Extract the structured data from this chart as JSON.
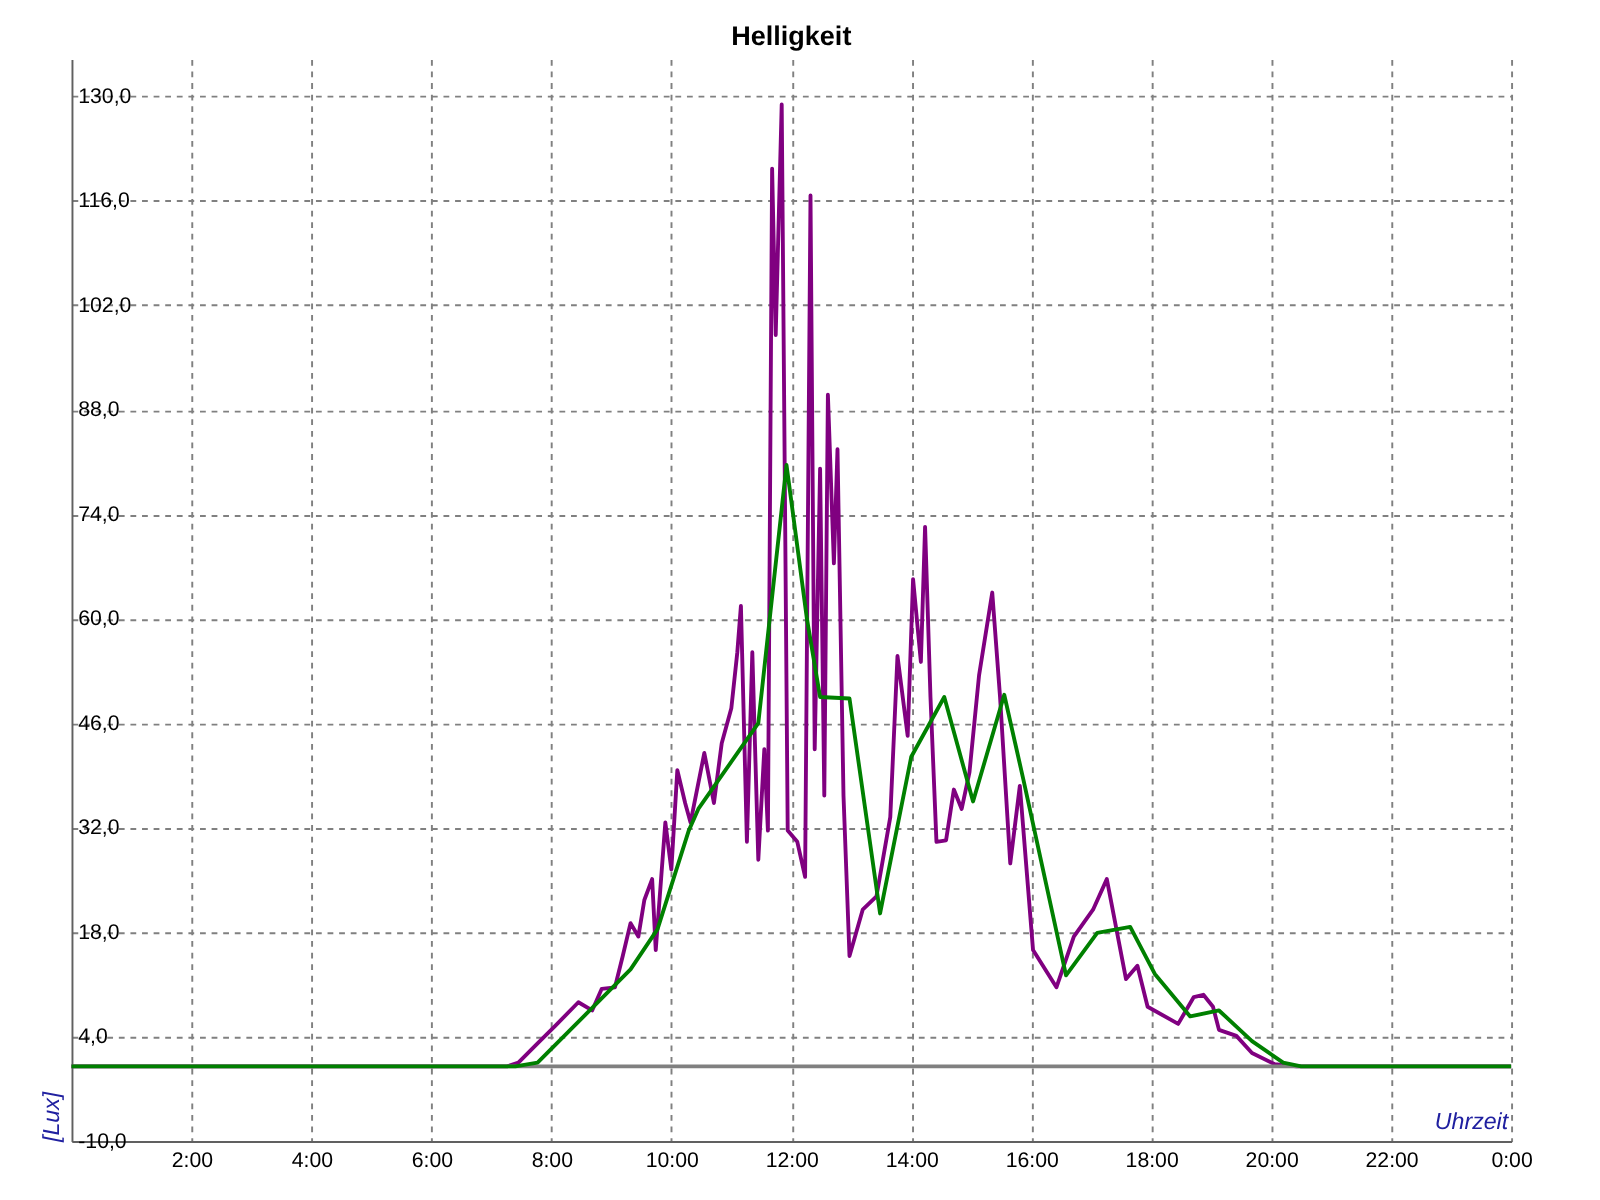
{
  "chart_data": {
    "type": "line",
    "title": "Helligkeit",
    "xlabel": "Uhrzeit",
    "ylabel": "[Lux]",
    "xlim": [
      0,
      24
    ],
    "ylim": [
      -10,
      135
    ],
    "xticks": [
      {
        "value": 2,
        "label": "2:00"
      },
      {
        "value": 4,
        "label": "4:00"
      },
      {
        "value": 6,
        "label": "6:00"
      },
      {
        "value": 8,
        "label": "8:00"
      },
      {
        "value": 10,
        "label": "10:00"
      },
      {
        "value": 12,
        "label": "12:00"
      },
      {
        "value": 14,
        "label": "14:00"
      },
      {
        "value": 16,
        "label": "16:00"
      },
      {
        "value": 18,
        "label": "18:00"
      },
      {
        "value": 20,
        "label": "20:00"
      },
      {
        "value": 22,
        "label": "22:00"
      },
      {
        "value": 24,
        "label": "0:00"
      }
    ],
    "yticks": [
      {
        "value": -10,
        "label": "-10,0"
      },
      {
        "value": 4,
        "label": "4,0"
      },
      {
        "value": 18,
        "label": "18,0"
      },
      {
        "value": 32,
        "label": "32,0"
      },
      {
        "value": 46,
        "label": "46,0"
      },
      {
        "value": 60,
        "label": "60,0"
      },
      {
        "value": 74,
        "label": "74,0"
      },
      {
        "value": 88,
        "label": "88,0"
      },
      {
        "value": 102,
        "label": "102,0"
      },
      {
        "value": 116,
        "label": "116,0"
      },
      {
        "value": 130,
        "label": "130,0"
      }
    ],
    "grid": true,
    "marker": "none",
    "line_style": "solid",
    "ref_lines": [
      {
        "axis": "y",
        "value": 0,
        "color": "#808080"
      }
    ],
    "series": [
      {
        "color": "#800080",
        "x": [
          0,
          7.26,
          7.45,
          7.77,
          8.06,
          8.45,
          8.68,
          8.84,
          9.06,
          9.19,
          9.32,
          9.45,
          9.55,
          9.68,
          9.74,
          9.9,
          10.0,
          10.1,
          10.23,
          10.32,
          10.55,
          10.71,
          10.84,
          11.0,
          11.1,
          11.16,
          11.26,
          11.35,
          11.45,
          11.55,
          11.61,
          11.68,
          11.74,
          11.84,
          11.94,
          12.1,
          12.23,
          12.32,
          12.39,
          12.48,
          12.55,
          12.61,
          12.71,
          12.77,
          12.87,
          12.97,
          13.19,
          13.42,
          13.65,
          13.77,
          13.94,
          14.03,
          14.16,
          14.23,
          14.32,
          14.42,
          14.58,
          14.71,
          14.84,
          14.97,
          15.13,
          15.35,
          15.48,
          15.65,
          15.81,
          16.03,
          16.42,
          16.71,
          17.03,
          17.26,
          17.58,
          17.77,
          17.94,
          18.45,
          18.71,
          18.87,
          19.03,
          19.13,
          19.42,
          19.68,
          20.06,
          20.42,
          24
        ],
        "values": [
          0,
          0,
          0.5,
          3.1,
          5.4,
          8.6,
          7.5,
          10.4,
          10.6,
          14.8,
          19.2,
          17.4,
          22.3,
          25.1,
          15.6,
          32.7,
          26.4,
          39.7,
          35.3,
          32.7,
          42,
          35.3,
          43.3,
          48,
          55.5,
          61.7,
          30.1,
          55.5,
          27.7,
          42.5,
          31.6,
          120.3,
          98,
          128.9,
          31.6,
          30.1,
          25.4,
          116.7,
          42.5,
          80.1,
          36.3,
          90,
          67.4,
          82.7,
          36.3,
          14.8,
          21,
          22.8,
          33.4,
          55,
          44.3,
          65.3,
          54.2,
          72.3,
          49.5,
          30.1,
          30.3,
          37.1,
          34.5,
          39.4,
          52.4,
          63.5,
          49.5,
          27.2,
          37.6,
          15.6,
          10.6,
          17.4,
          21,
          25.1,
          11.7,
          13.5,
          8,
          5.7,
          9.3,
          9.6,
          8,
          4.9,
          4.1,
          1.8,
          0.3,
          0,
          0
        ]
      },
      {
        "color": "#008000",
        "x": [
          0,
          7.4,
          7.77,
          9.32,
          9.77,
          10.29,
          10.45,
          11.45,
          11.92,
          12.26,
          12.48,
          12.97,
          13.48,
          14.0,
          14.55,
          15.03,
          15.55,
          15.87,
          16.58,
          17.1,
          17.65,
          18.06,
          18.65,
          19.13,
          19.68,
          20.2,
          20.5,
          24
        ],
        "values": [
          0,
          0,
          0.5,
          13,
          18.4,
          31.6,
          34.5,
          46,
          80.6,
          60,
          49.5,
          49.3,
          20.5,
          41.5,
          49.5,
          35.5,
          49.8,
          38.4,
          12.2,
          17.9,
          18.7,
          12.4,
          6.7,
          7.5,
          3.4,
          0.5,
          0,
          0
        ]
      }
    ]
  }
}
